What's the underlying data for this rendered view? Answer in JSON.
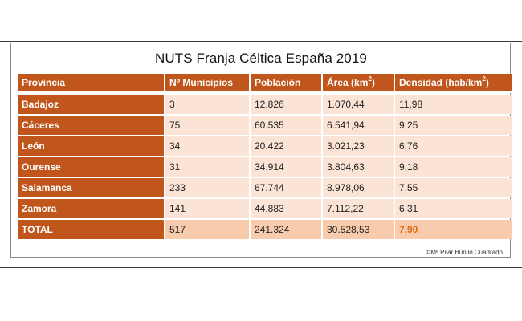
{
  "title": "NUTS Franja Céltica España 2019",
  "colors": {
    "header_bg": "#c0561b",
    "row_bg": "#fbe3d5",
    "total_bg": "#f8cbad",
    "highlight": "#e06a10"
  },
  "table": {
    "headers": [
      "Provincia",
      "Nº Municipios",
      "Población",
      "Área (km",
      "Densidad (hab/km"
    ],
    "header_superscripts": [
      "",
      "",
      "",
      "2",
      "2"
    ],
    "header_suffixes": [
      "",
      "",
      "",
      ")",
      ")"
    ],
    "rows": [
      [
        "Badajoz",
        "3",
        "12.826",
        "1.070,44",
        "11,98"
      ],
      [
        "Cáceres",
        "75",
        "60.535",
        "6.541,94",
        "9,25"
      ],
      [
        "León",
        "34",
        "20.422",
        "3.021,23",
        "6,76"
      ],
      [
        "Ourense",
        "31",
        "34.914",
        "3.804,63",
        "9,18"
      ],
      [
        "Salamanca",
        "233",
        "67.744",
        "8.978,06",
        "7,55"
      ],
      [
        "Zamora",
        "141",
        "44.883",
        "7.112,22",
        "6,31"
      ]
    ],
    "total": [
      "TOTAL",
      "517",
      "241.324",
      "30.528,53",
      "7,90"
    ]
  },
  "credit": "©Mª Pilar Burillo Cuadrado"
}
